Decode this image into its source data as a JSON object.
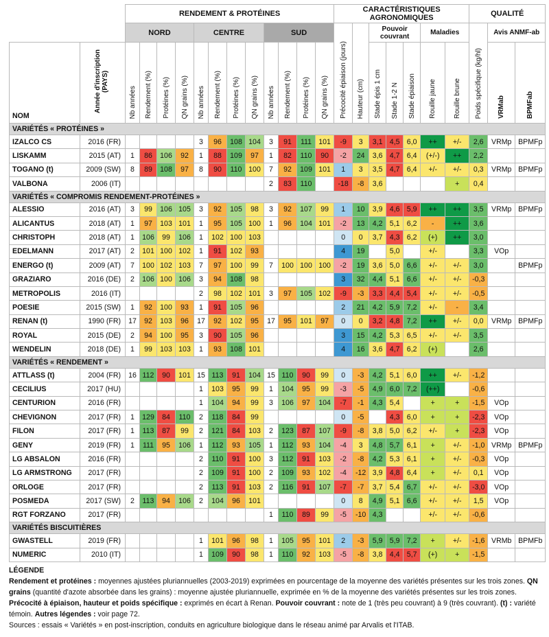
{
  "headers": {
    "group_rendement": "RENDEMENT & PROTÉINES",
    "group_carac": "CARACTÉRISTIQUES AGRONOMIQUES",
    "group_qualite": "QUALITÉ",
    "nord": "NORD",
    "centre": "CENTRE",
    "sud": "SUD",
    "pouvoir_couvrant": "Pouvoir couvrant",
    "maladies": "Maladies",
    "avis": "Avis ANMF-ab",
    "nom": "NOM",
    "annee": "Année d'inscription (PAYS)",
    "nb_annees": "Nb années",
    "rendement": "Rendement (%)",
    "proteines": "Protéines (%)",
    "qn": "QN grains (%)",
    "precocite": "Précocité épiaison (jours)",
    "hauteur": "Hauteur (cm)",
    "stade_epis": "Stade épis 1 cm",
    "stade_12n": "Stade 1-2 N",
    "stade_epiaison": "Stade épiaison",
    "rouille_jaune": "Rouille jaune",
    "rouille_brune": "Rouille brune",
    "poids": "Poids spécifique (kg/hl)",
    "vrmab": "VRMab",
    "bpmfab": "BPMFab"
  },
  "sections": [
    {
      "title": "VARIÉTÉS « PROTÉINES »",
      "rows": [
        [
          "IZALCO CS",
          "2016 (FR)",
          "",
          "",
          "",
          "",
          "3",
          "96",
          "108",
          "104",
          "3",
          "91",
          "111",
          "101",
          "-9",
          "3",
          "3,1",
          "4,5",
          "6,0",
          "++",
          "+/-",
          "2,6",
          "VRMp",
          "BPMFp"
        ],
        [
          "LISKAMM",
          "2015 (AT)",
          "1",
          "86",
          "106",
          "92",
          "1",
          "88",
          "109",
          "97",
          "1",
          "82",
          "110",
          "90",
          "-2",
          "24",
          "3,6",
          "4,7",
          "6,4",
          "(+/-)",
          "++",
          "2,2",
          "",
          ""
        ],
        [
          "TOGANO (t)",
          "2009 (SW)",
          "8",
          "89",
          "108",
          "97",
          "8",
          "90",
          "110",
          "100",
          "7",
          "92",
          "109",
          "101",
          "1",
          "3",
          "3,5",
          "4,7",
          "6,4",
          "+/-",
          "+/-",
          "0,3",
          "VRMp",
          "BPMFp"
        ],
        [
          "VALBONA",
          "2006 (IT)",
          "",
          "",
          "",
          "",
          "",
          "",
          "",
          "",
          "2",
          "83",
          "110",
          "",
          "-18",
          "-8",
          "3,6",
          "",
          "",
          "",
          "+",
          "0,4",
          "",
          ""
        ]
      ]
    },
    {
      "title": "VARIÉTÉS « COMPROMIS RENDEMENT-PROTÉINES »",
      "rows": [
        [
          "ALESSIO",
          "2016 (AT)",
          "3",
          "99",
          "106",
          "105",
          "3",
          "92",
          "105",
          "98",
          "3",
          "92",
          "107",
          "99",
          "1",
          "10",
          "3,9",
          "4,6",
          "5,9",
          "++",
          "++",
          "3,5",
          "VRMp",
          "BPMFp"
        ],
        [
          "ALICANTUS",
          "2018 (AT)",
          "1",
          "97",
          "103",
          "101",
          "1",
          "95",
          "105",
          "100",
          "1",
          "96",
          "104",
          "101",
          "-2",
          "13",
          "4,2",
          "5,1",
          "6,2",
          "-",
          "++",
          "3,6",
          "",
          ""
        ],
        [
          "CHRISTOPH",
          "2018 (AT)",
          "1",
          "106",
          "99",
          "106",
          "1",
          "102",
          "100",
          "103",
          "",
          "",
          "",
          "",
          "0",
          "0",
          "3,7",
          "4,3",
          "6,2",
          "(+)",
          "++",
          "3,0",
          "",
          ""
        ],
        [
          "EDELMANN",
          "2017 (AT)",
          "2",
          "101",
          "100",
          "102",
          "1",
          "91",
          "102",
          "93",
          "",
          "",
          "",
          "",
          "4",
          "19",
          "",
          "5,0",
          "",
          "+/-",
          "",
          "3,3",
          "VOp",
          ""
        ],
        [
          "ENERGO (t)",
          "2009 (AT)",
          "7",
          "100",
          "102",
          "103",
          "7",
          "97",
          "100",
          "99",
          "7",
          "100",
          "100",
          "100",
          "-2",
          "19",
          "3,6",
          "5,0",
          "6,6",
          "+/-",
          "+/-",
          "3,0",
          "",
          "BPMFp"
        ],
        [
          "GRAZIARO",
          "2016 (DE)",
          "2",
          "106",
          "100",
          "106",
          "3",
          "94",
          "108",
          "98",
          "",
          "",
          "",
          "",
          "3",
          "32",
          "4,4",
          "5,1",
          "6,6",
          "+/-",
          "+/-",
          "-0,3",
          "",
          ""
        ],
        [
          "METROPOLIS",
          "2016 (IT)",
          "",
          "",
          "",
          "",
          "2",
          "98",
          "102",
          "101",
          "3",
          "97",
          "105",
          "102",
          "-9",
          "-3",
          "3,3",
          "4,4",
          "5,4",
          "+/-",
          "+/-",
          "-0,5",
          "",
          ""
        ],
        [
          "POESIE",
          "2015 (SW)",
          "1",
          "92",
          "100",
          "93",
          "1",
          "91",
          "105",
          "96",
          "",
          "",
          "",
          "",
          "2",
          "21",
          "4,2",
          "5,9",
          "7,2",
          "+/-",
          "-",
          "3,4",
          "",
          ""
        ],
        [
          "RENAN (t)",
          "1990 (FR)",
          "17",
          "92",
          "103",
          "96",
          "17",
          "92",
          "102",
          "95",
          "17",
          "95",
          "101",
          "97",
          "0",
          "0",
          "3,2",
          "4,8",
          "7,2",
          "++",
          "+/-",
          "0,0",
          "VRMp",
          "BPMFp"
        ],
        [
          "ROYAL",
          "2015 (DE)",
          "2",
          "94",
          "100",
          "95",
          "3",
          "90",
          "105",
          "96",
          "",
          "",
          "",
          "",
          "3",
          "15",
          "4,2",
          "5,3",
          "6,5",
          "+/-",
          "+/-",
          "3,5",
          "",
          ""
        ],
        [
          "WENDELIN",
          "2018 (DE)",
          "1",
          "99",
          "103",
          "103",
          "1",
          "93",
          "108",
          "101",
          "",
          "",
          "",
          "",
          "4",
          "16",
          "3,6",
          "4,7",
          "6,2",
          "(+)",
          "",
          "2,6",
          "",
          ""
        ]
      ]
    },
    {
      "title": "VARIÉTÉS « RENDEMENT »",
      "rows": [
        [
          "ATTLASS (t)",
          "2004 (FR)",
          "16",
          "112",
          "90",
          "101",
          "15",
          "113",
          "91",
          "104",
          "15",
          "110",
          "90",
          "99",
          "0",
          "-3",
          "4,2",
          "5,1",
          "6,0",
          "++",
          "+/-",
          "-1,2",
          "",
          ""
        ],
        [
          "CECILIUS",
          "2017 (HU)",
          "",
          "",
          "",
          "",
          "1",
          "103",
          "95",
          "99",
          "1",
          "104",
          "95",
          "99",
          "-3",
          "-5",
          "4,9",
          "6,0",
          "7,2",
          "(++)",
          "",
          "-0,6",
          "",
          ""
        ],
        [
          "CENTURION",
          "2016 (FR)",
          "",
          "",
          "",
          "",
          "1",
          "104",
          "94",
          "99",
          "3",
          "106",
          "97",
          "104",
          "-7",
          "-1",
          "4,3",
          "5,4",
          "",
          "+",
          "+",
          "-1,5",
          "VOp",
          ""
        ],
        [
          "CHEVIGNON",
          "2017 (FR)",
          "1",
          "129",
          "84",
          "110",
          "2",
          "118",
          "84",
          "99",
          "",
          "",
          "",
          "",
          "0",
          "-5",
          "",
          "4,3",
          "6,0",
          "+",
          "+",
          "-2,3",
          "VOp",
          ""
        ],
        [
          "FILON",
          "2017 (FR)",
          "1",
          "113",
          "87",
          "99",
          "2",
          "121",
          "84",
          "103",
          "2",
          "123",
          "87",
          "107",
          "-9",
          "-8",
          "3,8",
          "5,0",
          "6,2",
          "+/-",
          "+",
          "-2,3",
          "VOp",
          ""
        ],
        [
          "GENY",
          "2019 (FR)",
          "1",
          "111",
          "95",
          "106",
          "1",
          "112",
          "93",
          "105",
          "1",
          "112",
          "93",
          "104",
          "-4",
          "3",
          "4,8",
          "5,7",
          "6,1",
          "+",
          "+/-",
          "-1,0",
          "VRMp",
          "BPMFp"
        ],
        [
          "LG ABSALON",
          "2016 (FR)",
          "",
          "",
          "",
          "",
          "2",
          "110",
          "91",
          "100",
          "3",
          "112",
          "91",
          "103",
          "-2",
          "-8",
          "4,2",
          "5,3",
          "6,1",
          "+",
          "+/-",
          "-0,3",
          "VOp",
          ""
        ],
        [
          "LG ARMSTRONG",
          "2017 (FR)",
          "",
          "",
          "",
          "",
          "2",
          "109",
          "91",
          "100",
          "2",
          "109",
          "93",
          "102",
          "-4",
          "-12",
          "3,9",
          "4,8",
          "6,4",
          "+",
          "+/-",
          "0,1",
          "VOp",
          ""
        ],
        [
          "ORLOGE",
          "2017 (FR)",
          "",
          "",
          "",
          "",
          "2",
          "113",
          "91",
          "103",
          "2",
          "116",
          "91",
          "107",
          "-7",
          "-7",
          "3,7",
          "5,4",
          "6,7",
          "+/-",
          "+/-",
          "-3,0",
          "VOp",
          ""
        ],
        [
          "POSMEDA",
          "2017 (SW)",
          "2",
          "113",
          "94",
          "106",
          "2",
          "104",
          "96",
          "101",
          "",
          "",
          "",
          "",
          "0",
          "8",
          "4,9",
          "5,1",
          "6,6",
          "+/-",
          "+/-",
          "1,5",
          "VOp",
          ""
        ],
        [
          "RGT FORZANO",
          "2017 (FR)",
          "",
          "",
          "",
          "",
          "",
          "",
          "",
          "",
          "1",
          "110",
          "89",
          "99",
          "-5",
          "-10",
          "4,3",
          "",
          "",
          "+/-",
          "+/-",
          "-0,6",
          "",
          ""
        ]
      ]
    },
    {
      "title": "VARIÉTÉS BISCUITIÈRES",
      "rows": [
        [
          "GWASTELL",
          "2019 (FR)",
          "",
          "",
          "",
          "",
          "1",
          "101",
          "96",
          "98",
          "1",
          "105",
          "95",
          "101",
          "2",
          "-3",
          "5,9",
          "5,9",
          "7,2",
          "+",
          "+/-",
          "-1,6",
          "VRMb",
          "BPMFb"
        ],
        [
          "NUMERIC",
          "2010 (IT)",
          "",
          "",
          "",
          "",
          "1",
          "109",
          "90",
          "98",
          "1",
          "110",
          "92",
          "103",
          "-5",
          "-8",
          "3,8",
          "4,4",
          "5,7",
          "(+)",
          "+",
          "-1,5",
          "",
          ""
        ]
      ]
    }
  ],
  "legend": {
    "title": "LÉGENDE",
    "l1_b": "Rendement et protéines :",
    "l1": " moyennes ajustées pluriannuelles (2003-2019) exprimées en pourcentage de la moyenne des variétés présentes sur les trois zones. ",
    "l2_b": "QN grains",
    "l2": " (quantité d'azote absorbée dans les grains) : moyenne ajustée pluriannuelle, exprimée en % de la moyenne des variétés présentes sur les trois zones. ",
    "l3_b": "Précocité à épiaison, hauteur et poids spécifique :",
    "l3": " exprimés en écart à Renan. ",
    "l4_b": "Pouvoir couvrant :",
    "l4": " note de 1 (très peu couvrant) à 9 (très couvrant). ",
    "l5_b": "(t) :",
    "l5": " variété témoin. ",
    "l6_b": "Autres légendes :",
    "l6": " voir page 72.",
    "sources": "Sources : essais « Variétés » en post-inscription, conduits en agriculture biologique dans le réseau animé par Arvalis et l'ITAB."
  },
  "colors": {
    "green": "#6bbe6b",
    "light_green": "#a8d98a",
    "yellow": "#fbe66d",
    "orange": "#f9b146",
    "red": "#ef4d43",
    "pink": "#f5a3a5",
    "blue": "#3e98d2",
    "light_blue": "#9ccbe9",
    "dark_green": "#0f9a47",
    "yellow_green": "#c9e15a",
    "section_gray": "#d8d8d8"
  }
}
